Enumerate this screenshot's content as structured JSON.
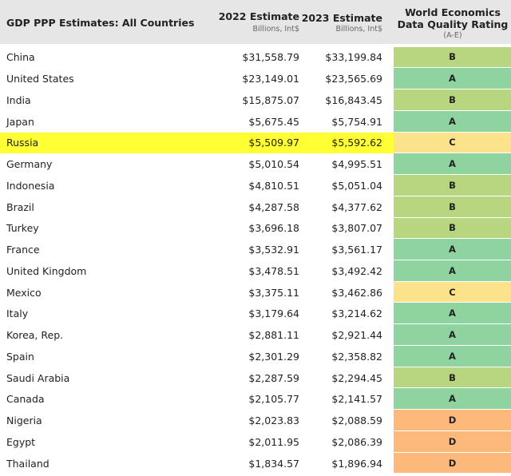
{
  "header": {
    "title": "GDP PPP Estimates: All Countries",
    "col_2022": "2022 Estimate",
    "col_2022_unit": "Billions, Int$",
    "col_2023": "2023 Estimate",
    "col_2023_unit": "Billions, Int$",
    "col_rating": "World Economics Data Quality Rating",
    "col_rating_scale": "(A-E)"
  },
  "table": {
    "rows": [
      [
        "China",
        "$31,558.79",
        "$33,199.84",
        "B"
      ],
      [
        "United States",
        "$23,149.01",
        "$23,565.69",
        "A"
      ],
      [
        "India",
        "$15,875.07",
        "$16,843.45",
        "B"
      ],
      [
        "Japan",
        "$5,675.45",
        "$5,754.91",
        "A"
      ],
      [
        "Russia",
        "$5,509.97",
        "$5,592.62",
        "C"
      ],
      [
        "Germany",
        "$5,010.54",
        "$4,995.51",
        "A"
      ],
      [
        "Indonesia",
        "$4,810.51",
        "$5,051.04",
        "B"
      ],
      [
        "Brazil",
        "$4,287.58",
        "$4,377.62",
        "B"
      ],
      [
        "Turkey",
        "$3,696.18",
        "$3,807.07",
        "B"
      ],
      [
        "France",
        "$3,532.91",
        "$3,561.17",
        "A"
      ],
      [
        "United Kingdom",
        "$3,478.51",
        "$3,492.42",
        "A"
      ],
      [
        "Mexico",
        "$3,375.11",
        "$3,462.86",
        "C"
      ],
      [
        "Italy",
        "$3,179.64",
        "$3,214.62",
        "A"
      ],
      [
        "Korea, Rep.",
        "$2,881.11",
        "$2,921.44",
        "A"
      ],
      [
        "Spain",
        "$2,301.29",
        "$2,358.82",
        "A"
      ],
      [
        "Saudi Arabia",
        "$2,287.59",
        "$2,294.45",
        "B"
      ],
      [
        "Canada",
        "$2,105.77",
        "$2,141.57",
        "A"
      ],
      [
        "Nigeria",
        "$2,023.83",
        "$2,088.59",
        "D"
      ],
      [
        "Egypt",
        "$2,011.95",
        "$2,086.39",
        "D"
      ],
      [
        "Thailand",
        "$1,834.57",
        "$1,896.94",
        "D"
      ]
    ]
  }
}
